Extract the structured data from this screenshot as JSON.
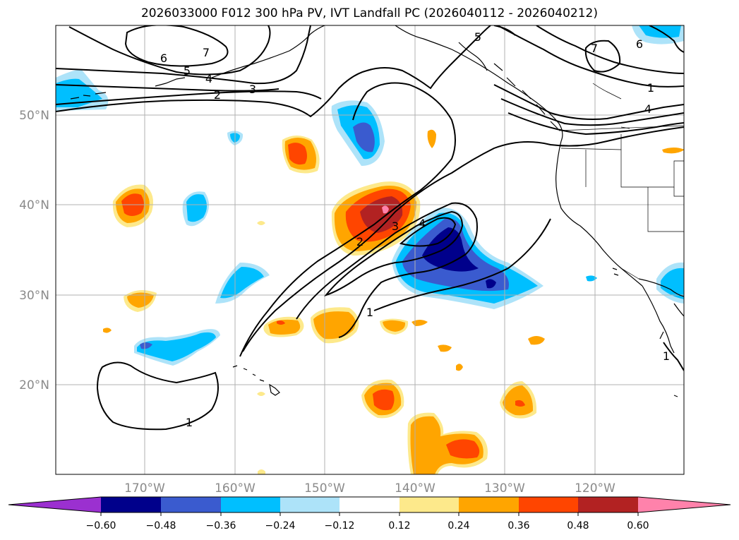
{
  "title": "2026033000 F012 300 hPa PV, IVT Landfall PC (2026040112 - 2026040212)",
  "map": {
    "lat_labels": [
      "50°N",
      "40°N",
      "30°N",
      "20°N"
    ],
    "lon_labels": [
      "170°W",
      "160°W",
      "150°W",
      "140°W",
      "130°W",
      "120°W"
    ],
    "contour_labels": [
      "7",
      "6",
      "5",
      "4",
      "3",
      "2",
      "1",
      "5",
      "7",
      "6",
      "4",
      "3",
      "2",
      "4",
      "1",
      "1",
      "1"
    ],
    "colors": {
      "neg_extend": "#9b30d0",
      "neg_060": "#00008b",
      "neg_048": "#3a5bcf",
      "neg_036": "#00bfff",
      "neg_024": "#ade3f9",
      "pos_012": "#fde98b",
      "pos_024": "#ffa500",
      "pos_036": "#ff4500",
      "pos_048": "#b22222",
      "pos_extend": "#ff82ab"
    }
  },
  "colorbar": {
    "colors": [
      "#9b30d0",
      "#00008b",
      "#3a5bcf",
      "#00bfff",
      "#ade3f9",
      "#ffffff",
      "#fde98b",
      "#ffa500",
      "#ff4500",
      "#b22222",
      "#ff82ab"
    ],
    "tick_labels": [
      "−0.60",
      "−0.48",
      "−0.36",
      "−0.24",
      "−0.12",
      "0.12",
      "0.24",
      "0.36",
      "0.48",
      "0.60"
    ]
  }
}
